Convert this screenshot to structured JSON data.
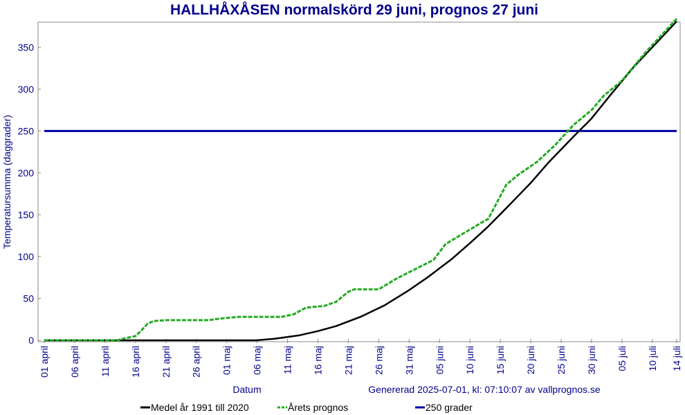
{
  "chart_data": {
    "type": "line",
    "title": "HALLHÅXÅSEN normalskörd 29 juni, prognos 27 juni",
    "ylabel": "Temperatursumma (daggrader)",
    "xlabel": "Datum",
    "generated": "Genererad 2025-07-01, kl: 07:10:07 av vallprognos.se",
    "ylim": [
      0,
      380
    ],
    "xlim": [
      "2025-04-01",
      "2025-07-14"
    ],
    "yticks": [
      0,
      50,
      100,
      150,
      200,
      250,
      300,
      350
    ],
    "xticks": [
      {
        "date": "2025-04-01",
        "label": "01 april"
      },
      {
        "date": "2025-04-06",
        "label": "06 april"
      },
      {
        "date": "2025-04-11",
        "label": "11 april"
      },
      {
        "date": "2025-04-16",
        "label": "16 april"
      },
      {
        "date": "2025-04-21",
        "label": "21 april"
      },
      {
        "date": "2025-04-26",
        "label": "26 april"
      },
      {
        "date": "2025-05-01",
        "label": "01 maj"
      },
      {
        "date": "2025-05-06",
        "label": "06 maj"
      },
      {
        "date": "2025-05-11",
        "label": "11 maj"
      },
      {
        "date": "2025-05-16",
        "label": "16 maj"
      },
      {
        "date": "2025-05-21",
        "label": "21 maj"
      },
      {
        "date": "2025-05-26",
        "label": "26 maj"
      },
      {
        "date": "2025-05-31",
        "label": "31 maj"
      },
      {
        "date": "2025-06-05",
        "label": "05 juni"
      },
      {
        "date": "2025-06-10",
        "label": "10 juni"
      },
      {
        "date": "2025-06-15",
        "label": "15 juni"
      },
      {
        "date": "2025-06-20",
        "label": "20 juni"
      },
      {
        "date": "2025-06-25",
        "label": "25 juni"
      },
      {
        "date": "2025-06-30",
        "label": "30 juni"
      },
      {
        "date": "2025-07-05",
        "label": "05 juli"
      },
      {
        "date": "2025-07-10",
        "label": "10 juli"
      },
      {
        "date": "2025-07-14",
        "label": "14 juli"
      }
    ],
    "series": [
      {
        "name": "Medel år 1991 till 2020",
        "color": "#000000",
        "style": "solid",
        "points": [
          {
            "x": "2025-04-01",
            "y": 0
          },
          {
            "x": "2025-05-06",
            "y": 0
          },
          {
            "x": "2025-05-09",
            "y": 2
          },
          {
            "x": "2025-05-13",
            "y": 6
          },
          {
            "x": "2025-05-16",
            "y": 11
          },
          {
            "x": "2025-05-19",
            "y": 17
          },
          {
            "x": "2025-05-23",
            "y": 28
          },
          {
            "x": "2025-05-27",
            "y": 42
          },
          {
            "x": "2025-05-31",
            "y": 60
          },
          {
            "x": "2025-06-03",
            "y": 75
          },
          {
            "x": "2025-06-07",
            "y": 97
          },
          {
            "x": "2025-06-10",
            "y": 116
          },
          {
            "x": "2025-06-13",
            "y": 136
          },
          {
            "x": "2025-06-16",
            "y": 158
          },
          {
            "x": "2025-06-20",
            "y": 188
          },
          {
            "x": "2025-06-23",
            "y": 213
          },
          {
            "x": "2025-06-27",
            "y": 243
          },
          {
            "x": "2025-06-30",
            "y": 265
          },
          {
            "x": "2025-07-03",
            "y": 292
          },
          {
            "x": "2025-07-07",
            "y": 327
          },
          {
            "x": "2025-07-10",
            "y": 350
          },
          {
            "x": "2025-07-14",
            "y": 381
          }
        ]
      },
      {
        "name": "Årets prognos",
        "color": "#22aa22",
        "style": "dashed",
        "points": [
          {
            "x": "2025-04-01",
            "y": 0
          },
          {
            "x": "2025-04-13",
            "y": 0
          },
          {
            "x": "2025-04-14",
            "y": 2
          },
          {
            "x": "2025-04-16",
            "y": 5
          },
          {
            "x": "2025-04-17",
            "y": 12
          },
          {
            "x": "2025-04-18",
            "y": 20
          },
          {
            "x": "2025-04-19",
            "y": 23
          },
          {
            "x": "2025-04-21",
            "y": 24
          },
          {
            "x": "2025-04-28",
            "y": 24
          },
          {
            "x": "2025-04-30",
            "y": 26
          },
          {
            "x": "2025-05-03",
            "y": 28
          },
          {
            "x": "2025-05-10",
            "y": 28
          },
          {
            "x": "2025-05-12",
            "y": 31
          },
          {
            "x": "2025-05-14",
            "y": 39
          },
          {
            "x": "2025-05-17",
            "y": 41
          },
          {
            "x": "2025-05-19",
            "y": 46
          },
          {
            "x": "2025-05-21",
            "y": 58
          },
          {
            "x": "2025-05-22",
            "y": 61
          },
          {
            "x": "2025-05-26",
            "y": 61
          },
          {
            "x": "2025-05-29",
            "y": 74
          },
          {
            "x": "2025-06-01",
            "y": 85
          },
          {
            "x": "2025-06-04",
            "y": 96
          },
          {
            "x": "2025-06-06",
            "y": 115
          },
          {
            "x": "2025-06-09",
            "y": 128
          },
          {
            "x": "2025-06-12",
            "y": 141
          },
          {
            "x": "2025-06-13",
            "y": 145
          },
          {
            "x": "2025-06-16",
            "y": 186
          },
          {
            "x": "2025-06-18",
            "y": 198
          },
          {
            "x": "2025-06-21",
            "y": 213
          },
          {
            "x": "2025-06-24",
            "y": 233
          },
          {
            "x": "2025-06-27",
            "y": 257
          },
          {
            "x": "2025-06-30",
            "y": 275
          },
          {
            "x": "2025-07-02",
            "y": 292
          },
          {
            "x": "2025-07-05",
            "y": 310
          },
          {
            "x": "2025-07-09",
            "y": 345
          },
          {
            "x": "2025-07-14",
            "y": 384
          }
        ]
      },
      {
        "name": "250 grader",
        "color": "#0000aa",
        "style": "solid",
        "points": [
          {
            "x": "2025-04-01",
            "y": 250
          },
          {
            "x": "2025-07-14",
            "y": 250
          }
        ]
      }
    ],
    "legend_position": "bottom",
    "grid": false
  }
}
